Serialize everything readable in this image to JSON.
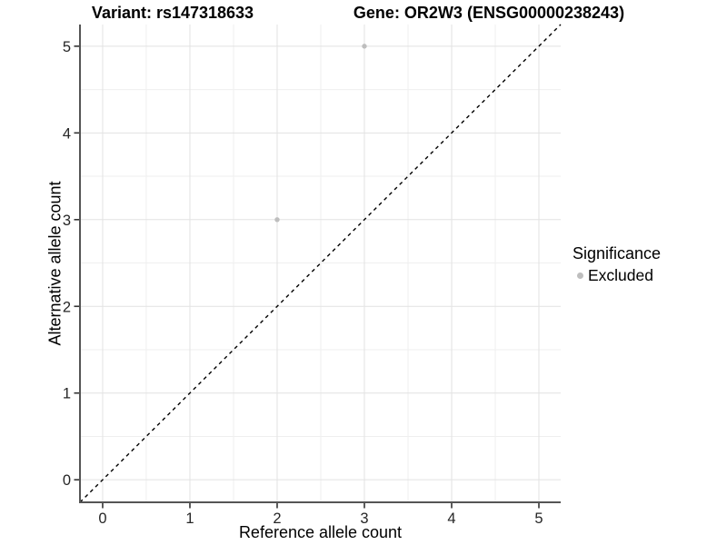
{
  "chart_data": {
    "type": "scatter",
    "title_left": "Variant: rs147318633",
    "title_right": "Gene: OR2W3 (ENSG00000238243)",
    "xlabel": "Reference allele count",
    "ylabel": "Alternative allele count",
    "xlim": [
      -0.26,
      5.25
    ],
    "ylim": [
      -0.26,
      5.25
    ],
    "xticks": [
      0,
      1,
      2,
      3,
      4,
      5
    ],
    "yticks": [
      0,
      1,
      2,
      3,
      4,
      5
    ],
    "grid": "major+minor",
    "abline": {
      "slope": 1,
      "intercept": 0,
      "style": "dashed",
      "color": "#000000"
    },
    "series": [
      {
        "name": "Excluded",
        "color": "#bebebe",
        "points": [
          {
            "x": 2,
            "y": 3
          },
          {
            "x": 3,
            "y": 5
          }
        ]
      }
    ],
    "legend": {
      "title": "Significance",
      "position": "right",
      "items": [
        {
          "label": "Excluded",
          "color": "#bebebe"
        }
      ]
    },
    "colors": {
      "background": "#ffffff",
      "grid_major": "#e2e2e2",
      "grid_minor": "#efefef",
      "axis_line": "#555555",
      "tick_mark": "#333333",
      "tick_label": "#262626",
      "title_text": "#000000"
    }
  }
}
